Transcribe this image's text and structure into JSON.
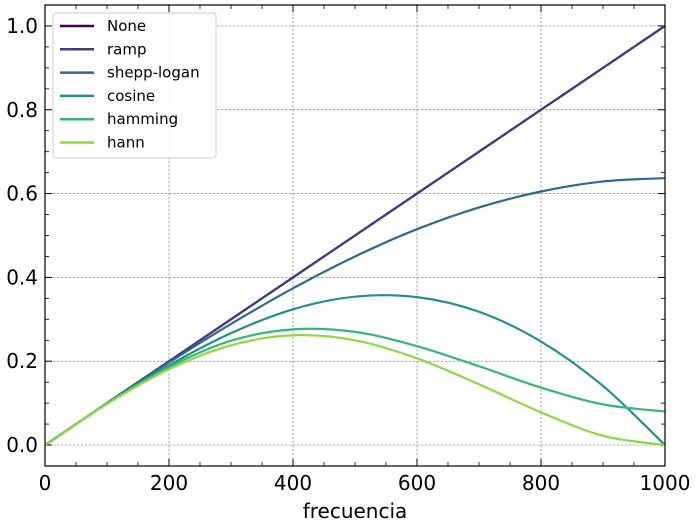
{
  "chart_data": {
    "type": "line",
    "title": "",
    "xlabel": "frecuencia",
    "ylabel": "",
    "xlim": [
      0,
      1000
    ],
    "ylim": [
      -0.05,
      1.05
    ],
    "xticks": [
      0,
      200,
      400,
      600,
      800,
      1000
    ],
    "xtick_labels": [
      "0",
      "200",
      "400",
      "600",
      "800",
      "1000"
    ],
    "yticks": [
      0.0,
      0.2,
      0.4,
      0.6,
      0.8,
      1.0
    ],
    "ytick_labels": [
      "0.0",
      "0.2",
      "0.4",
      "0.6",
      "0.8",
      "1.0"
    ],
    "grid": true,
    "legend_position": "upper-left",
    "x": [
      0,
      100,
      200,
      300,
      400,
      500,
      600,
      700,
      800,
      900,
      1000
    ],
    "series": [
      {
        "name": "None",
        "color": "#440154",
        "values": [
          0.0,
          0.1,
          0.2,
          0.3,
          0.4,
          0.5,
          0.6,
          0.7,
          0.8,
          0.9,
          1.0
        ]
      },
      {
        "name": "ramp",
        "color": "#443a83",
        "values": [
          0.0,
          0.1,
          0.2,
          0.3,
          0.4,
          0.5,
          0.6,
          0.7,
          0.8,
          0.9,
          1.0
        ]
      },
      {
        "name": "shepp-logan",
        "color": "#31688e",
        "values": [
          0.0,
          0.1,
          0.197,
          0.289,
          0.374,
          0.45,
          0.515,
          0.567,
          0.605,
          0.629,
          0.637
        ]
      },
      {
        "name": "cosine",
        "color": "#21918c",
        "values": [
          0.0,
          0.099,
          0.19,
          0.267,
          0.324,
          0.354,
          0.353,
          0.318,
          0.247,
          0.141,
          0.0
        ]
      },
      {
        "name": "hamming",
        "color": "#35b779",
        "values": [
          0.0,
          0.099,
          0.186,
          0.249,
          0.276,
          0.27,
          0.236,
          0.188,
          0.137,
          0.097,
          0.08
        ]
      },
      {
        "name": "hann",
        "color": "#90d743",
        "values": [
          0.0,
          0.098,
          0.181,
          0.238,
          0.262,
          0.25,
          0.207,
          0.145,
          0.078,
          0.022,
          0.0
        ]
      }
    ]
  }
}
